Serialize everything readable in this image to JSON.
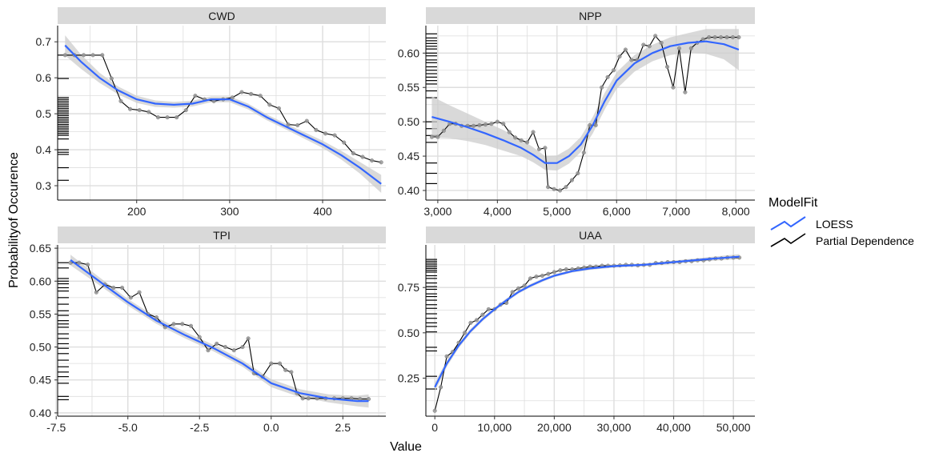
{
  "chart_data": {
    "type": "line",
    "xlabel": "Value",
    "ylabel": "Probabilityof Occurence",
    "legend": {
      "title": "ModelFit",
      "placement": "right",
      "entries": [
        {
          "label": "LOESS",
          "color": "#3366ff"
        },
        {
          "label": "Partial Dependence",
          "color": "#000000"
        }
      ]
    },
    "colors": {
      "loess": "#3366ff",
      "pdp": "#000000",
      "points": "#999999",
      "ribbon": "#cccccc",
      "strip": "#d9d9d9",
      "grid": "#dedede"
    },
    "panels": [
      {
        "title": "CWD",
        "xlim": [
          115,
          468
        ],
        "ylim": [
          0.26,
          0.745
        ],
        "xticks": [
          {
            "v": 200,
            "label": "200"
          },
          {
            "v": 300,
            "label": "300"
          },
          {
            "v": 400,
            "label": "400"
          }
        ],
        "yticks": [
          {
            "v": 0.3,
            "label": "0.3"
          },
          {
            "v": 0.4,
            "label": "0.4"
          },
          {
            "v": 0.5,
            "label": "0.5"
          },
          {
            "v": 0.6,
            "label": "0.6"
          },
          {
            "v": 0.7,
            "label": "0.7"
          }
        ],
        "rug": [
          0.663,
          0.598,
          0.545,
          0.54,
          0.535,
          0.53,
          0.525,
          0.52,
          0.515,
          0.51,
          0.505,
          0.5,
          0.495,
          0.49,
          0.485,
          0.48,
          0.475,
          0.47,
          0.465,
          0.46,
          0.455,
          0.45,
          0.445,
          0.44,
          0.43,
          0.4,
          0.393,
          0.387,
          0.35,
          0.315
        ],
        "pdp": {
          "x": [
            123,
            133,
            143,
            153,
            163,
            173,
            183,
            193,
            203,
            213,
            223,
            233,
            243,
            253,
            263,
            273,
            283,
            293,
            303,
            313,
            323,
            333,
            343,
            353,
            363,
            373,
            383,
            393,
            403,
            413,
            423,
            433,
            443,
            453,
            463
          ],
          "y": [
            0.663,
            0.663,
            0.663,
            0.663,
            0.663,
            0.598,
            0.535,
            0.513,
            0.51,
            0.505,
            0.49,
            0.49,
            0.49,
            0.51,
            0.55,
            0.54,
            0.535,
            0.54,
            0.545,
            0.56,
            0.555,
            0.55,
            0.525,
            0.515,
            0.47,
            0.468,
            0.48,
            0.455,
            0.445,
            0.44,
            0.42,
            0.39,
            0.38,
            0.37,
            0.365
          ]
        },
        "loess": {
          "x": [
            123,
            140,
            160,
            180,
            200,
            220,
            240,
            260,
            280,
            300,
            320,
            340,
            360,
            380,
            400,
            420,
            440,
            463
          ],
          "y": [
            0.69,
            0.645,
            0.6,
            0.565,
            0.54,
            0.528,
            0.525,
            0.528,
            0.54,
            0.54,
            0.52,
            0.49,
            0.465,
            0.44,
            0.415,
            0.385,
            0.35,
            0.305
          ],
          "band": [
            0.028,
            0.02,
            0.014,
            0.011,
            0.01,
            0.009,
            0.008,
            0.008,
            0.008,
            0.008,
            0.008,
            0.008,
            0.008,
            0.009,
            0.01,
            0.012,
            0.016,
            0.025
          ]
        }
      },
      {
        "title": "NPP",
        "xlim": [
          2800,
          8320
        ],
        "ylim": [
          0.386,
          0.64
        ],
        "xticks": [
          {
            "v": 3000,
            "label": "3,000"
          },
          {
            "v": 4000,
            "label": "4,000"
          },
          {
            "v": 5000,
            "label": "5,000"
          },
          {
            "v": 6000,
            "label": "6,000"
          },
          {
            "v": 7000,
            "label": "7,000"
          },
          {
            "v": 8000,
            "label": "8,000"
          }
        ],
        "yticks": [
          {
            "v": 0.4,
            "label": "0.40"
          },
          {
            "v": 0.45,
            "label": "0.45"
          },
          {
            "v": 0.5,
            "label": "0.50"
          },
          {
            "v": 0.55,
            "label": "0.55"
          },
          {
            "v": 0.6,
            "label": "0.60"
          }
        ],
        "rug": [
          0.628,
          0.622,
          0.618,
          0.614,
          0.61,
          0.606,
          0.6,
          0.596,
          0.59,
          0.586,
          0.58,
          0.575,
          0.57,
          0.565,
          0.56,
          0.555,
          0.545,
          0.535,
          0.5,
          0.49,
          0.48,
          0.47,
          0.44,
          0.425,
          0.41
        ],
        "pdp": {
          "x": [
            2900,
            3000,
            3100,
            3200,
            3300,
            3400,
            3500,
            3600,
            3700,
            3800,
            3900,
            4000,
            4100,
            4200,
            4300,
            4400,
            4500,
            4600,
            4700,
            4800,
            4850,
            4950,
            5050,
            5150,
            5250,
            5350,
            5450,
            5550,
            5650,
            5750,
            5850,
            5950,
            6050,
            6150,
            6250,
            6350,
            6450,
            6550,
            6650,
            6750,
            6850,
            6950,
            7050,
            7150,
            7250,
            7350,
            7450,
            7550,
            7650,
            7750,
            7850,
            7950,
            8050
          ],
          "y": [
            0.478,
            0.478,
            0.487,
            0.497,
            0.497,
            0.494,
            0.494,
            0.494,
            0.495,
            0.496,
            0.497,
            0.5,
            0.497,
            0.485,
            0.477,
            0.473,
            0.47,
            0.485,
            0.46,
            0.462,
            0.405,
            0.402,
            0.4,
            0.405,
            0.415,
            0.425,
            0.455,
            0.495,
            0.495,
            0.55,
            0.565,
            0.575,
            0.595,
            0.605,
            0.59,
            0.59,
            0.612,
            0.61,
            0.625,
            0.615,
            0.58,
            0.55,
            0.607,
            0.543,
            0.607,
            0.615,
            0.62,
            0.623,
            0.623,
            0.623,
            0.623,
            0.623,
            0.623
          ]
        },
        "loess": {
          "x": [
            2900,
            3200,
            3500,
            3800,
            4100,
            4400,
            4600,
            4800,
            5000,
            5200,
            5400,
            5600,
            5800,
            6000,
            6300,
            6600,
            6900,
            7200,
            7500,
            7800,
            8050
          ],
          "y": [
            0.507,
            0.5,
            0.492,
            0.483,
            0.473,
            0.462,
            0.452,
            0.44,
            0.44,
            0.45,
            0.467,
            0.495,
            0.53,
            0.56,
            0.585,
            0.6,
            0.61,
            0.615,
            0.617,
            0.613,
            0.605
          ],
          "band": [
            0.03,
            0.024,
            0.02,
            0.017,
            0.015,
            0.012,
            0.011,
            0.01,
            0.011,
            0.011,
            0.011,
            0.012,
            0.012,
            0.012,
            0.012,
            0.012,
            0.013,
            0.014,
            0.018,
            0.022,
            0.03
          ]
        }
      },
      {
        "title": "TPI",
        "xlim": [
          -7.45,
          4.0
        ],
        "ylim": [
          0.395,
          0.655
        ],
        "xticks": [
          {
            "v": -7.5,
            "label": "-7.5"
          },
          {
            "v": -5.0,
            "label": "-5.0"
          },
          {
            "v": -2.5,
            "label": "-2.5"
          },
          {
            "v": 0.0,
            "label": "0.0"
          },
          {
            "v": 2.5,
            "label": "2.5"
          }
        ],
        "yticks": [
          {
            "v": 0.4,
            "label": "0.40"
          },
          {
            "v": 0.45,
            "label": "0.45"
          },
          {
            "v": 0.5,
            "label": "0.50"
          },
          {
            "v": 0.55,
            "label": "0.55"
          },
          {
            "v": 0.6,
            "label": "0.60"
          },
          {
            "v": 0.65,
            "label": "0.65"
          }
        ],
        "rug": [
          0.628,
          0.62,
          0.604,
          0.6,
          0.596,
          0.59,
          0.585,
          0.575,
          0.565,
          0.555,
          0.548,
          0.54,
          0.535,
          0.53,
          0.52,
          0.513,
          0.505,
          0.498,
          0.49,
          0.48,
          0.47,
          0.462,
          0.455,
          0.445,
          0.425,
          0.42
        ],
        "pdp": {
          "x": [
            -7.0,
            -6.7,
            -6.4,
            -6.1,
            -5.8,
            -5.5,
            -5.2,
            -4.9,
            -4.6,
            -4.3,
            -4.0,
            -3.7,
            -3.4,
            -3.1,
            -2.8,
            -2.5,
            -2.2,
            -1.9,
            -1.6,
            -1.3,
            -1.0,
            -0.8,
            -0.6,
            -0.3,
            0.0,
            0.3,
            0.5,
            0.7,
            0.9,
            1.1,
            1.3,
            1.6,
            1.9,
            2.2,
            2.5,
            2.8,
            3.1,
            3.4
          ],
          "y": [
            0.628,
            0.628,
            0.625,
            0.583,
            0.595,
            0.59,
            0.59,
            0.575,
            0.583,
            0.55,
            0.545,
            0.53,
            0.535,
            0.535,
            0.532,
            0.515,
            0.495,
            0.505,
            0.5,
            0.495,
            0.5,
            0.513,
            0.46,
            0.455,
            0.475,
            0.475,
            0.465,
            0.462,
            0.43,
            0.422,
            0.422,
            0.422,
            0.422,
            0.422,
            0.422,
            0.422,
            0.421,
            0.421
          ]
        },
        "loess": {
          "x": [
            -7.0,
            -6.0,
            -5.0,
            -4.0,
            -3.0,
            -2.0,
            -1.0,
            0.0,
            1.0,
            2.0,
            3.0,
            3.4
          ],
          "y": [
            0.632,
            0.6,
            0.568,
            0.54,
            0.518,
            0.498,
            0.475,
            0.445,
            0.43,
            0.422,
            0.418,
            0.418
          ],
          "band": [
            0.008,
            0.006,
            0.005,
            0.005,
            0.005,
            0.005,
            0.005,
            0.006,
            0.006,
            0.006,
            0.008,
            0.01
          ]
        }
      },
      {
        "title": "UAA",
        "xlim": [
          -1500,
          53600
        ],
        "ylim": [
          0.04,
          0.985
        ],
        "xticks": [
          {
            "v": 0,
            "label": "0"
          },
          {
            "v": 10000,
            "label": "10,000"
          },
          {
            "v": 20000,
            "label": "20,000"
          },
          {
            "v": 30000,
            "label": "30,000"
          },
          {
            "v": 40000,
            "label": "40,000"
          },
          {
            "v": 50000,
            "label": "50,000"
          }
        ],
        "yticks": [
          {
            "v": 0.25,
            "label": "0.25"
          },
          {
            "v": 0.5,
            "label": "0.50"
          },
          {
            "v": 0.75,
            "label": "0.75"
          }
        ],
        "rug": [
          0.905,
          0.895,
          0.885,
          0.875,
          0.865,
          0.855,
          0.845,
          0.835,
          0.815,
          0.8,
          0.775,
          0.755,
          0.74,
          0.715,
          0.7,
          0.68,
          0.655,
          0.635,
          0.605,
          0.58,
          0.555,
          0.535,
          0.505,
          0.42,
          0.4,
          0.26,
          0.19
        ],
        "pdp": {
          "x": [
            0,
            1000,
            2000,
            3000,
            4000,
            5000,
            6000,
            7000,
            8000,
            9000,
            10000,
            11000,
            12000,
            13000,
            14000,
            15000,
            16000,
            17000,
            18000,
            19000,
            20000,
            21000,
            22000,
            23000,
            24000,
            25000,
            26000,
            27000,
            28000,
            29000,
            30000,
            31000,
            32000,
            33000,
            34000,
            35000,
            36000,
            37000,
            38000,
            39000,
            40000,
            41000,
            42000,
            43000,
            44000,
            45000,
            46000,
            47000,
            48000,
            49000,
            50000,
            51000
          ],
          "y": [
            0.07,
            0.2,
            0.37,
            0.395,
            0.445,
            0.5,
            0.555,
            0.57,
            0.6,
            0.63,
            0.63,
            0.655,
            0.665,
            0.725,
            0.745,
            0.76,
            0.8,
            0.81,
            0.815,
            0.825,
            0.835,
            0.845,
            0.85,
            0.85,
            0.855,
            0.86,
            0.865,
            0.865,
            0.87,
            0.87,
            0.87,
            0.872,
            0.875,
            0.875,
            0.872,
            0.875,
            0.875,
            0.885,
            0.885,
            0.89,
            0.89,
            0.89,
            0.895,
            0.895,
            0.9,
            0.9,
            0.905,
            0.91,
            0.91,
            0.915,
            0.915,
            0.915
          ]
        },
        "loess": {
          "x": [
            0,
            2000,
            4000,
            6000,
            8000,
            10000,
            12000,
            14000,
            16000,
            18000,
            20000,
            23000,
            26000,
            30000,
            35000,
            40000,
            45000,
            51000
          ],
          "y": [
            0.2,
            0.33,
            0.43,
            0.51,
            0.575,
            0.63,
            0.68,
            0.725,
            0.76,
            0.79,
            0.815,
            0.84,
            0.855,
            0.868,
            0.875,
            0.89,
            0.905,
            0.92
          ],
          "band": [
            0.025,
            0.018,
            0.014,
            0.012,
            0.011,
            0.01,
            0.01,
            0.009,
            0.009,
            0.009,
            0.008,
            0.008,
            0.008,
            0.008,
            0.008,
            0.009,
            0.01,
            0.014
          ]
        }
      }
    ]
  }
}
